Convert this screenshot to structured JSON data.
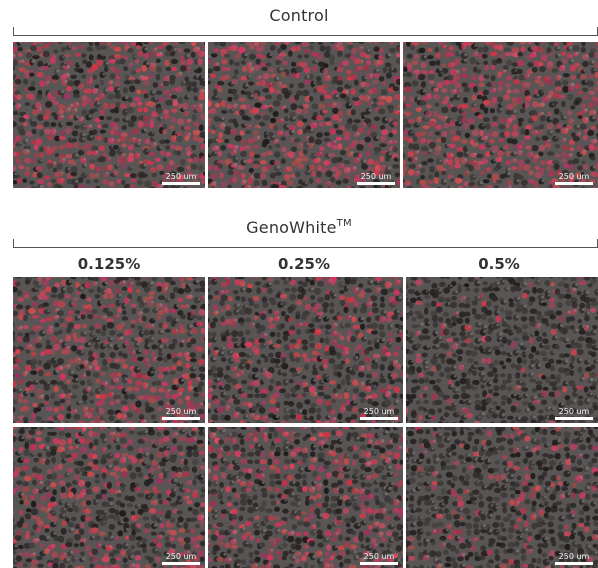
{
  "control": {
    "title": "Control"
  },
  "genowhite": {
    "title": "GenoWhite",
    "superscript": "TM"
  },
  "columns": [
    "0.125%",
    "0.25%",
    "0.5%"
  ],
  "scale_bar_label": "250 um",
  "panels": [
    {
      "group": "control",
      "red_density": 0.55
    },
    {
      "group": "control",
      "red_density": 0.5
    },
    {
      "group": "control",
      "red_density": 0.6
    },
    {
      "group": "0.125%",
      "red_density": 0.5
    },
    {
      "group": "0.25%",
      "red_density": 0.35
    },
    {
      "group": "0.5%",
      "red_density": 0.12
    },
    {
      "group": "0.125%",
      "red_density": 0.45
    },
    {
      "group": "0.25%",
      "red_density": 0.38
    },
    {
      "group": "0.5%",
      "red_density": 0.18
    }
  ],
  "colors": {
    "cell_red": "#c8435a",
    "cell_dark": "#2a2626",
    "background": "#5a5555"
  }
}
